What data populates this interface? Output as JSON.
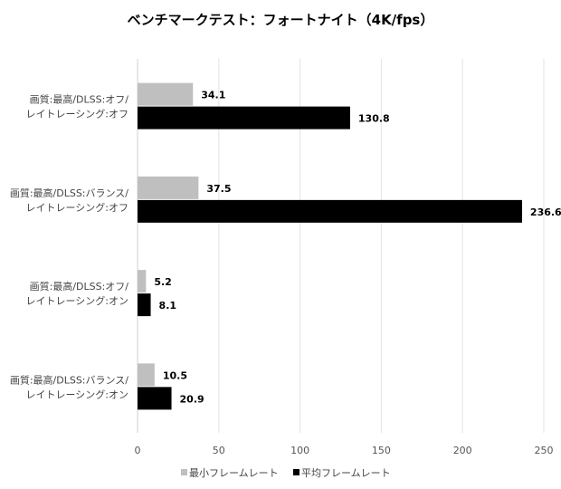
{
  "chart_data": {
    "type": "bar",
    "orientation": "horizontal",
    "title": "ベンチマークテスト：フォートナイト（4K/fps）",
    "categories": [
      [
        "画質:最高/DLSS:オフ/",
        "レイトレーシング:オフ"
      ],
      [
        "画質:最高/DLSS:バランス/",
        "レイトレーシング:オフ"
      ],
      [
        "画質:最高/DLSS:オフ/",
        "レイトレーシング:オン"
      ],
      [
        "画質:最高/DLSS:バランス/",
        "レイトレーシング:オン"
      ]
    ],
    "series": [
      {
        "name": "最小フレームレート",
        "color": "#bfbfbf",
        "values": [
          34.1,
          37.5,
          5.2,
          10.5
        ]
      },
      {
        "name": "平均フレームレート",
        "color": "#000000",
        "values": [
          130.8,
          236.6,
          8.1,
          20.9
        ]
      }
    ],
    "xlim": [
      0,
      250
    ],
    "xticks": [
      0,
      50,
      100,
      150,
      200,
      250
    ],
    "grid": true,
    "legend": "bottom"
  }
}
